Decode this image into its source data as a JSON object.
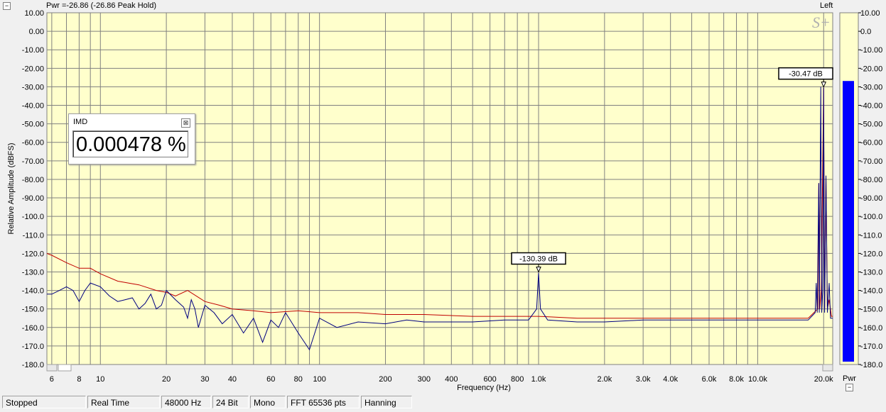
{
  "header": {
    "power_readout": "Pwr =-26.86 (-26.86 Peak Hold)",
    "channel": "Left",
    "collapse_glyph": "−",
    "logo_text": "S+"
  },
  "imd_panel": {
    "title": "IMD",
    "value": "0.000478 %",
    "close_glyph": "⊠"
  },
  "meter": {
    "label": "Pwr",
    "level_dbfs": -26.86,
    "color": "#0000ff",
    "ticks": [
      "10.00",
      "0.0",
      "-10.00",
      "-20.00",
      "-30.00",
      "-40.00",
      "-50.00",
      "-60.00",
      "-70.00",
      "-80.00",
      "-90.00",
      "-100.0",
      "-110.0",
      "-120.0",
      "-130.0",
      "-140.0",
      "-150.0",
      "-160.0",
      "-170.0",
      "-180.0"
    ],
    "minimize_glyph": "−"
  },
  "status_bar": {
    "items": [
      "Stopped",
      "Real Time",
      "48000 Hz",
      "24 Bit",
      "Mono",
      "FFT 65536 pts",
      "Hanning"
    ]
  },
  "chart_data": {
    "type": "line",
    "title": "",
    "xlabel": "Frequency (Hz)",
    "ylabel": "Relative Amplitude (dBFS)",
    "x_scale": "log",
    "xlim": [
      5.7,
      22000
    ],
    "ylim": [
      -180,
      10
    ],
    "grid": true,
    "background": "#ffffcc",
    "y_ticks": [
      "10.00",
      "0.00",
      "-10.00",
      "-20.00",
      "-30.00",
      "-40.00",
      "-50.00",
      "-60.00",
      "-70.00",
      "-80.00",
      "-90.00",
      "-100.0",
      "-110.0",
      "-120.0",
      "-130.0",
      "-140.0",
      "-150.0",
      "-160.0",
      "-170.0",
      "-180.0"
    ],
    "x_ticks": [
      {
        "value": 6,
        "label": "6"
      },
      {
        "value": 8,
        "label": "8"
      },
      {
        "value": 10,
        "label": "10"
      },
      {
        "value": 20,
        "label": "20"
      },
      {
        "value": 30,
        "label": "30"
      },
      {
        "value": 40,
        "label": "40"
      },
      {
        "value": 60,
        "label": "60"
      },
      {
        "value": 80,
        "label": "80"
      },
      {
        "value": 100,
        "label": "100"
      },
      {
        "value": 200,
        "label": "200"
      },
      {
        "value": 300,
        "label": "300"
      },
      {
        "value": 400,
        "label": "400"
      },
      {
        "value": 600,
        "label": "600"
      },
      {
        "value": 800,
        "label": "800"
      },
      {
        "value": 1000,
        "label": "1.0k"
      },
      {
        "value": 2000,
        "label": "2.0k"
      },
      {
        "value": 3000,
        "label": "3.0k"
      },
      {
        "value": 4000,
        "label": "4.0k"
      },
      {
        "value": 6000,
        "label": "6.0k"
      },
      {
        "value": 8000,
        "label": "8.0k"
      },
      {
        "value": 10000,
        "label": "10.0k"
      },
      {
        "value": 20000,
        "label": "20.0k"
      }
    ],
    "series": [
      {
        "color": "#c00000",
        "points": [
          [
            5.7,
            -120
          ],
          [
            6,
            -121
          ],
          [
            7,
            -125
          ],
          [
            8,
            -128
          ],
          [
            9,
            -128
          ],
          [
            10,
            -131
          ],
          [
            12,
            -135
          ],
          [
            15,
            -137
          ],
          [
            18,
            -140
          ],
          [
            20,
            -141
          ],
          [
            22,
            -143
          ],
          [
            25,
            -140
          ],
          [
            30,
            -146
          ],
          [
            35,
            -148
          ],
          [
            40,
            -150
          ],
          [
            50,
            -151
          ],
          [
            60,
            -152
          ],
          [
            80,
            -151
          ],
          [
            100,
            -152
          ],
          [
            150,
            -152
          ],
          [
            200,
            -153
          ],
          [
            300,
            -153
          ],
          [
            500,
            -154
          ],
          [
            800,
            -154
          ],
          [
            1000,
            -154
          ],
          [
            1500,
            -155
          ],
          [
            2000,
            -155
          ],
          [
            3000,
            -155
          ],
          [
            5000,
            -155
          ],
          [
            8000,
            -155
          ],
          [
            12000,
            -155
          ],
          [
            17000,
            -155
          ],
          [
            18800,
            -150
          ],
          [
            19000,
            -82
          ],
          [
            19200,
            -150
          ],
          [
            19500,
            -140
          ],
          [
            20000,
            -30.47
          ],
          [
            20200,
            -150
          ],
          [
            20500,
            -78
          ],
          [
            20800,
            -150
          ],
          [
            21200,
            -145
          ],
          [
            21700,
            -154
          ],
          [
            22000,
            -154
          ]
        ]
      },
      {
        "color": "#000080",
        "points": [
          [
            5.7,
            -142
          ],
          [
            6,
            -142
          ],
          [
            6.5,
            -140
          ],
          [
            7,
            -138
          ],
          [
            7.5,
            -140
          ],
          [
            8,
            -146
          ],
          [
            8.5,
            -140
          ],
          [
            9,
            -136
          ],
          [
            10,
            -138
          ],
          [
            11,
            -143
          ],
          [
            12,
            -146
          ],
          [
            13,
            -145
          ],
          [
            14,
            -144
          ],
          [
            15,
            -150
          ],
          [
            16,
            -147
          ],
          [
            17,
            -142
          ],
          [
            18,
            -150
          ],
          [
            19,
            -148
          ],
          [
            20,
            -140
          ],
          [
            22,
            -145
          ],
          [
            24,
            -149
          ],
          [
            25,
            -155
          ],
          [
            26,
            -145
          ],
          [
            27,
            -150
          ],
          [
            28,
            -160
          ],
          [
            30,
            -148
          ],
          [
            33,
            -152
          ],
          [
            36,
            -158
          ],
          [
            40,
            -153
          ],
          [
            45,
            -163
          ],
          [
            50,
            -155
          ],
          [
            55,
            -168
          ],
          [
            60,
            -156
          ],
          [
            65,
            -160
          ],
          [
            70,
            -152
          ],
          [
            80,
            -163
          ],
          [
            90,
            -172
          ],
          [
            100,
            -155
          ],
          [
            120,
            -160
          ],
          [
            150,
            -157
          ],
          [
            200,
            -158
          ],
          [
            250,
            -156
          ],
          [
            300,
            -157
          ],
          [
            400,
            -157
          ],
          [
            500,
            -157
          ],
          [
            700,
            -156
          ],
          [
            900,
            -156
          ],
          [
            980,
            -150
          ],
          [
            1000,
            -130.39
          ],
          [
            1020,
            -150
          ],
          [
            1100,
            -156
          ],
          [
            1500,
            -157
          ],
          [
            2000,
            -157
          ],
          [
            3000,
            -156
          ],
          [
            5000,
            -156
          ],
          [
            8000,
            -156
          ],
          [
            12000,
            -156
          ],
          [
            17000,
            -156
          ],
          [
            18300,
            -152
          ],
          [
            18500,
            -136
          ],
          [
            18700,
            -152
          ],
          [
            19000,
            -82
          ],
          [
            19100,
            -152
          ],
          [
            19400,
            -30
          ],
          [
            19600,
            -152
          ],
          [
            19800,
            -140
          ],
          [
            20000,
            -30.47
          ],
          [
            20200,
            -152
          ],
          [
            20500,
            -78
          ],
          [
            20800,
            -152
          ],
          [
            21200,
            -136
          ],
          [
            21500,
            -155
          ],
          [
            22000,
            -155
          ]
        ]
      }
    ],
    "markers": [
      {
        "label": "-130.39 dB",
        "x": 1000,
        "y": -130.39
      },
      {
        "label": "-30.47 dB",
        "x": 20000,
        "y": -30.47
      }
    ]
  }
}
